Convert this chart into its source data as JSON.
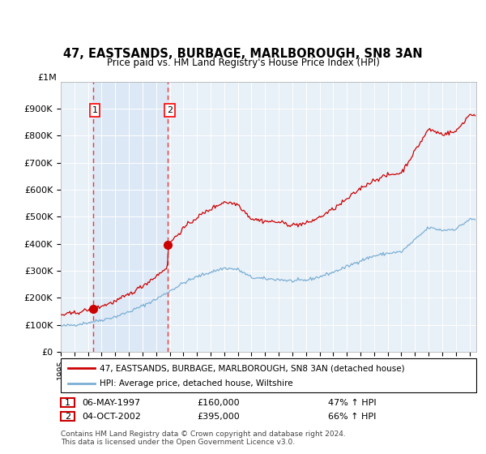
{
  "title": "47, EASTSANDS, BURBAGE, MARLBOROUGH, SN8 3AN",
  "subtitle": "Price paid vs. HM Land Registry's House Price Index (HPI)",
  "legend_line1": "47, EASTSANDS, BURBAGE, MARLBOROUGH, SN8 3AN (detached house)",
  "legend_line2": "HPI: Average price, detached house, Wiltshire",
  "annotation1_date": "06-MAY-1997",
  "annotation1_price": "£160,000",
  "annotation1_hpi": "47% ↑ HPI",
  "annotation2_date": "04-OCT-2002",
  "annotation2_price": "£395,000",
  "annotation2_hpi": "66% ↑ HPI",
  "footer": "Contains HM Land Registry data © Crown copyright and database right 2024.\nThis data is licensed under the Open Government Licence v3.0.",
  "sale1_year": 1997.35,
  "sale1_price": 160000,
  "sale2_year": 2002.85,
  "sale2_price": 395000,
  "hpi_color": "#7bafd4",
  "price_color": "#cc0000",
  "vline_color": "#ee3333",
  "highlight_color": "#dce8f5",
  "ylim": [
    0,
    1000000
  ],
  "xlim": [
    1995.0,
    2025.5
  ],
  "background_color": "#ffffff",
  "plot_bg_color": "#e8f0f8"
}
